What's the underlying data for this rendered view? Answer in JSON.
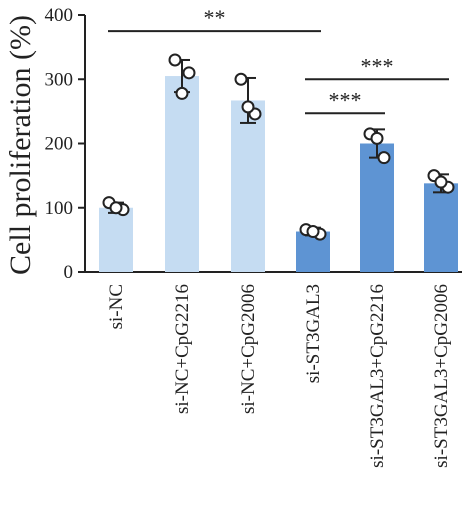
{
  "chart_data": {
    "type": "bar",
    "title": "",
    "xlabel": "",
    "ylabel": "Cell proliferation (%)",
    "ylim": [
      0,
      400
    ],
    "yticks": [
      "0",
      "100",
      "200",
      "300",
      "400"
    ],
    "categories": [
      "si-NC",
      "si-NC+CpG2216",
      "si-NC+CpG2006",
      "si-ST3GAL3",
      "si-ST3GAL3+CpG2216",
      "si-ST3GAL3+CpG2006"
    ],
    "values": [
      100,
      305,
      267,
      63,
      200,
      138
    ],
    "errors": [
      8,
      25,
      35,
      6,
      22,
      14
    ],
    "bar_colors": [
      "#c5dcf2",
      "#c5dcf2",
      "#c5dcf2",
      "#5e94d3",
      "#5e94d3",
      "#5e94d3"
    ],
    "points": [
      [
        108,
        97,
        100
      ],
      [
        330,
        310,
        278
      ],
      [
        300,
        246,
        257
      ],
      [
        66,
        59,
        63
      ],
      [
        215,
        178,
        208
      ],
      [
        150,
        132,
        140
      ]
    ],
    "significance": [
      {
        "from": 0,
        "to": 3,
        "label": "**",
        "y": 375
      },
      {
        "from": 3,
        "to": 5,
        "label": "***",
        "y": 300
      },
      {
        "from": 3,
        "to": 4,
        "label": "***",
        "y": 247
      }
    ],
    "grid": false
  }
}
